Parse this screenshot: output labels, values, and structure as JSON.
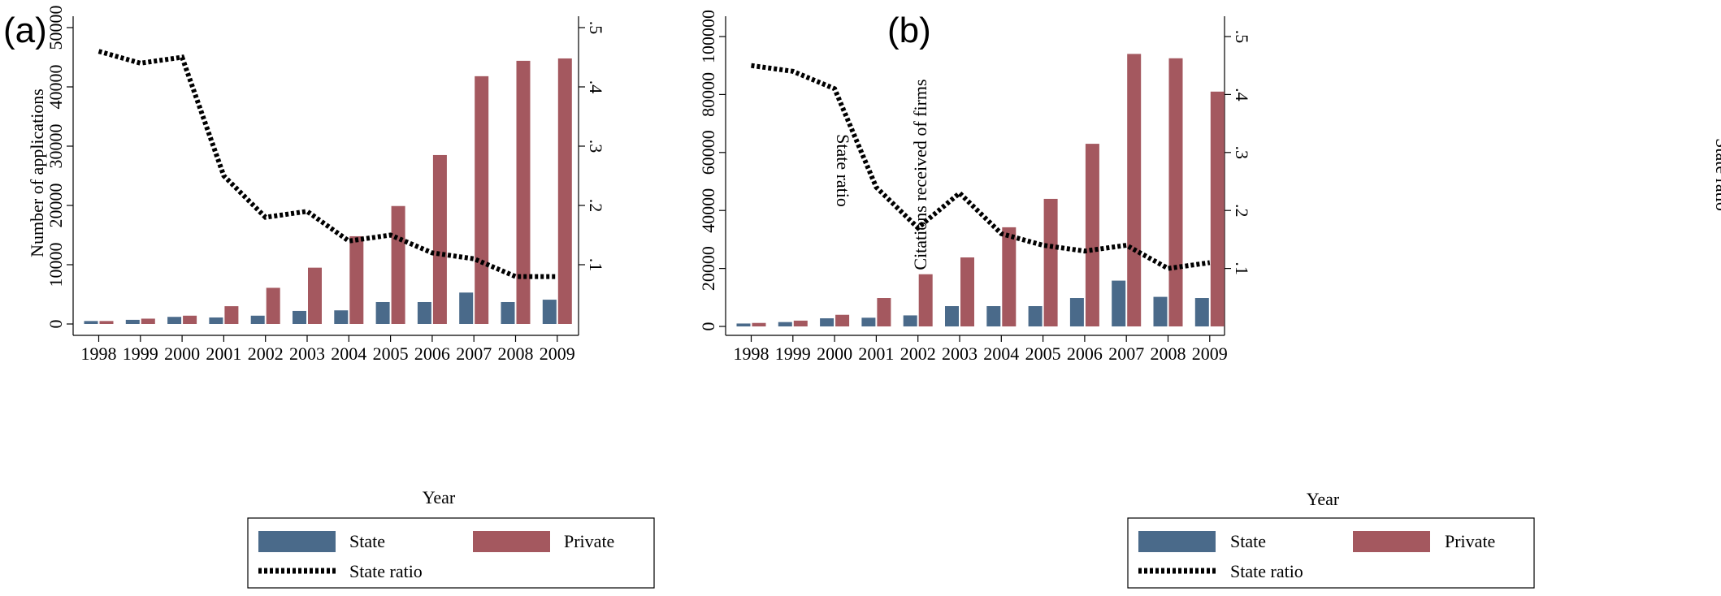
{
  "chart_data": [
    {
      "panel_label": "(a)",
      "type": "bar+line",
      "categories": [
        "1998",
        "1999",
        "2000",
        "2001",
        "2002",
        "2003",
        "2004",
        "2005",
        "2006",
        "2007",
        "2008",
        "2009"
      ],
      "xlabel": "Year",
      "ylabel": "Number of applications",
      "y2label": "State ratio",
      "ylim": [
        0,
        50000
      ],
      "yticks": [
        0,
        10000,
        20000,
        30000,
        40000,
        50000
      ],
      "ytick_labels": [
        "0",
        "10000",
        "20000",
        "30000",
        "40000",
        "50000"
      ],
      "y2lim": [
        0,
        0.5
      ],
      "y2ticks": [
        0.1,
        0.2,
        0.3,
        0.4,
        0.5
      ],
      "y2tick_labels": [
        ".1",
        ".2",
        ".3",
        ".4",
        ".5"
      ],
      "series": [
        {
          "name": "State",
          "kind": "bar",
          "axis": "left",
          "color": "#4a6a8a",
          "values": [
            500,
            700,
            1200,
            1100,
            1400,
            2200,
            2300,
            3700,
            3700,
            5300,
            3700,
            4100
          ]
        },
        {
          "name": "Private",
          "kind": "bar",
          "axis": "left",
          "color": "#a4585f",
          "values": [
            500,
            900,
            1400,
            3000,
            6100,
            9500,
            14800,
            19900,
            28500,
            41800,
            44400,
            44800
          ]
        },
        {
          "name": "State ratio",
          "kind": "line",
          "axis": "right",
          "style": "dotted",
          "color": "#000000",
          "values": [
            0.46,
            0.44,
            0.45,
            0.25,
            0.18,
            0.19,
            0.14,
            0.15,
            0.12,
            0.11,
            0.08,
            0.08
          ]
        }
      ],
      "legend": {
        "items": [
          "State",
          "Private",
          "State ratio"
        ],
        "placement": "bottom"
      }
    },
    {
      "panel_label": "(b)",
      "type": "bar+line",
      "categories": [
        "1998",
        "1999",
        "2000",
        "2001",
        "2002",
        "2003",
        "2004",
        "2005",
        "2006",
        "2007",
        "2008",
        "2009"
      ],
      "xlabel": "Year",
      "ylabel": "Citations received of firms",
      "y2label": "State ratio",
      "ylim": [
        0,
        100000
      ],
      "yticks": [
        0,
        20000,
        40000,
        60000,
        80000,
        100000
      ],
      "ytick_labels": [
        "0",
        "20000",
        "40000",
        "60000",
        "80000",
        "100000"
      ],
      "y2lim": [
        0,
        0.5
      ],
      "y2ticks": [
        0.1,
        0.2,
        0.3,
        0.4,
        0.5
      ],
      "y2tick_labels": [
        ".1",
        ".2",
        ".3",
        ".4",
        ".5"
      ],
      "series": [
        {
          "name": "State",
          "kind": "bar",
          "axis": "left",
          "color": "#4a6a8a",
          "values": [
            1000,
            1500,
            2800,
            3000,
            3800,
            7000,
            7000,
            7000,
            9800,
            15800,
            10200,
            9800
          ]
        },
        {
          "name": "Private",
          "kind": "bar",
          "axis": "left",
          "color": "#a4585f",
          "values": [
            1200,
            2000,
            4000,
            9800,
            18000,
            23800,
            34200,
            44000,
            63000,
            94000,
            92500,
            81000
          ]
        },
        {
          "name": "State ratio",
          "kind": "line",
          "axis": "right",
          "style": "dotted",
          "color": "#000000",
          "values": [
            0.45,
            0.44,
            0.41,
            0.24,
            0.17,
            0.23,
            0.16,
            0.14,
            0.13,
            0.14,
            0.1,
            0.11
          ]
        }
      ],
      "legend": {
        "items": [
          "State",
          "Private",
          "State ratio"
        ],
        "placement": "bottom"
      }
    }
  ]
}
